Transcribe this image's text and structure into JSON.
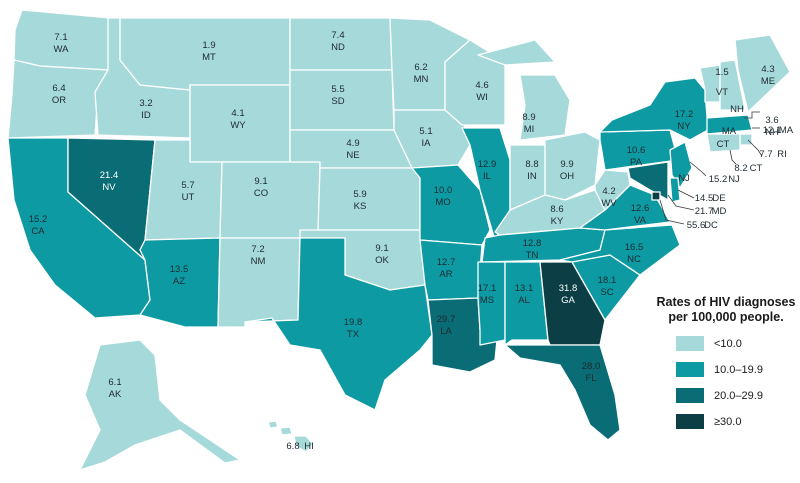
{
  "map": {
    "legend": {
      "title_line1": "Rates of HIV diagnoses",
      "title_line2": "per 100,000 people.",
      "items": [
        {
          "label": "<10.0",
          "color": "#a6d9da"
        },
        {
          "label": "10.0–19.9",
          "color": "#0d9aa3"
        },
        {
          "label": "20.0–29.9",
          "color": "#0a6c74"
        },
        {
          "label": "≥30.0",
          "color": "#0b3f45"
        }
      ]
    },
    "states": [
      {
        "abbr": "WA",
        "rate": "7.1",
        "tier": 0
      },
      {
        "abbr": "OR",
        "rate": "6.4",
        "tier": 0
      },
      {
        "abbr": "CA",
        "rate": "15.2",
        "tier": 1
      },
      {
        "abbr": "NV",
        "rate": "21.4",
        "tier": 2
      },
      {
        "abbr": "ID",
        "rate": "3.2",
        "tier": 0
      },
      {
        "abbr": "MT",
        "rate": "1.9",
        "tier": 0
      },
      {
        "abbr": "WY",
        "rate": "4.1",
        "tier": 0
      },
      {
        "abbr": "UT",
        "rate": "5.7",
        "tier": 0
      },
      {
        "abbr": "AZ",
        "rate": "13.5",
        "tier": 1
      },
      {
        "abbr": "CO",
        "rate": "9.1",
        "tier": 0
      },
      {
        "abbr": "NM",
        "rate": "7.2",
        "tier": 0
      },
      {
        "abbr": "ND",
        "rate": "7.4",
        "tier": 0
      },
      {
        "abbr": "SD",
        "rate": "5.5",
        "tier": 0
      },
      {
        "abbr": "NE",
        "rate": "4.9",
        "tier": 0
      },
      {
        "abbr": "KS",
        "rate": "5.9",
        "tier": 0
      },
      {
        "abbr": "OK",
        "rate": "9.1",
        "tier": 0
      },
      {
        "abbr": "TX",
        "rate": "19.8",
        "tier": 1
      },
      {
        "abbr": "MN",
        "rate": "6.2",
        "tier": 0
      },
      {
        "abbr": "IA",
        "rate": "5.1",
        "tier": 0
      },
      {
        "abbr": "MO",
        "rate": "10.0",
        "tier": 1
      },
      {
        "abbr": "AR",
        "rate": "12.7",
        "tier": 1
      },
      {
        "abbr": "LA",
        "rate": "29.7",
        "tier": 2
      },
      {
        "abbr": "WI",
        "rate": "4.6",
        "tier": 0
      },
      {
        "abbr": "IL",
        "rate": "12.9",
        "tier": 1
      },
      {
        "abbr": "MI",
        "rate": "8.9",
        "tier": 0
      },
      {
        "abbr": "IN",
        "rate": "8.8",
        "tier": 0
      },
      {
        "abbr": "OH",
        "rate": "9.9",
        "tier": 0
      },
      {
        "abbr": "KY",
        "rate": "8.6",
        "tier": 0
      },
      {
        "abbr": "TN",
        "rate": "12.8",
        "tier": 1
      },
      {
        "abbr": "MS",
        "rate": "17.1",
        "tier": 1
      },
      {
        "abbr": "AL",
        "rate": "13.1",
        "tier": 1
      },
      {
        "abbr": "GA",
        "rate": "31.8",
        "tier": 3
      },
      {
        "abbr": "FL",
        "rate": "28.0",
        "tier": 2
      },
      {
        "abbr": "SC",
        "rate": "18.1",
        "tier": 1
      },
      {
        "abbr": "NC",
        "rate": "16.5",
        "tier": 1
      },
      {
        "abbr": "VA",
        "rate": "12.6",
        "tier": 1
      },
      {
        "abbr": "WV",
        "rate": "4.2",
        "tier": 0
      },
      {
        "abbr": "PA",
        "rate": "10.6",
        "tier": 1
      },
      {
        "abbr": "NY",
        "rate": "17.2",
        "tier": 1
      },
      {
        "abbr": "VT",
        "rate": "1.5",
        "tier": 0
      },
      {
        "abbr": "NH",
        "rate": "3.6",
        "tier": 0
      },
      {
        "abbr": "ME",
        "rate": "4.3",
        "tier": 0
      },
      {
        "abbr": "MA",
        "rate": "12.1",
        "tier": 1
      },
      {
        "abbr": "RI",
        "rate": "7.7",
        "tier": 0
      },
      {
        "abbr": "CT",
        "rate": "8.2",
        "tier": 0
      },
      {
        "abbr": "NJ",
        "rate": "15.2",
        "tier": 1
      },
      {
        "abbr": "DE",
        "rate": "14.5",
        "tier": 1
      },
      {
        "abbr": "MD",
        "rate": "21.7",
        "tier": 2
      },
      {
        "abbr": "DC",
        "rate": "55.6",
        "tier": 3
      },
      {
        "abbr": "AK",
        "rate": "6.1",
        "tier": 0
      },
      {
        "abbr": "HI",
        "rate": "6.8",
        "tier": 0
      }
    ]
  }
}
